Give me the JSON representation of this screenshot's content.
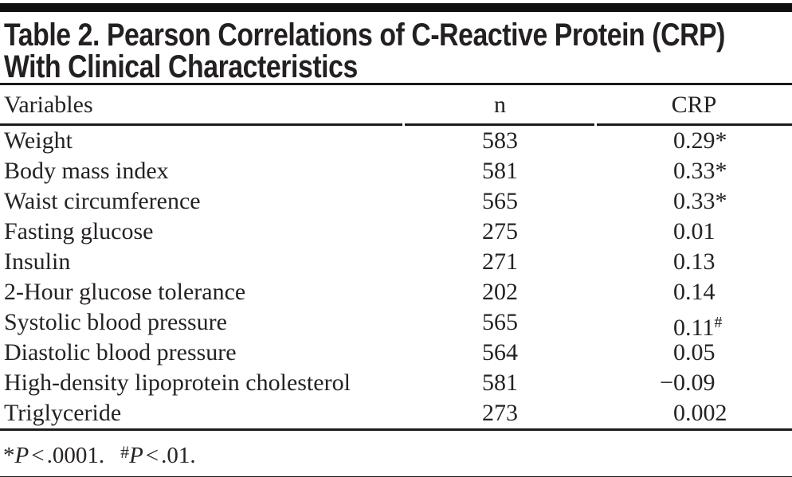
{
  "title": {
    "line1": "Table 2. Pearson Correlations of C-Reactive Protein (CRP)",
    "line2": "With Clinical Characteristics"
  },
  "table": {
    "columns": [
      "Variables",
      "n",
      "CRP"
    ],
    "rows": [
      {
        "variable": "Weight",
        "n": "583",
        "crp_sign": "",
        "crp_value": "0.29",
        "crp_marker": "*"
      },
      {
        "variable": "Body mass index",
        "n": "581",
        "crp_sign": "",
        "crp_value": "0.33",
        "crp_marker": "*"
      },
      {
        "variable": "Waist circumference",
        "n": "565",
        "crp_sign": "",
        "crp_value": "0.33",
        "crp_marker": "*"
      },
      {
        "variable": "Fasting glucose",
        "n": "275",
        "crp_sign": "",
        "crp_value": "0.01",
        "crp_marker": ""
      },
      {
        "variable": "Insulin",
        "n": "271",
        "crp_sign": "",
        "crp_value": "0.13",
        "crp_marker": ""
      },
      {
        "variable": "2-Hour glucose tolerance",
        "n": "202",
        "crp_sign": "",
        "crp_value": "0.14",
        "crp_marker": ""
      },
      {
        "variable": "Systolic blood pressure",
        "n": "565",
        "crp_sign": "",
        "crp_value": "0.11",
        "crp_marker": "#"
      },
      {
        "variable": "Diastolic blood pressure",
        "n": "564",
        "crp_sign": "",
        "crp_value": "0.05",
        "crp_marker": ""
      },
      {
        "variable": "High-density lipoprotein cholesterol",
        "n": "581",
        "crp_sign": "−",
        "crp_value": "0.09",
        "crp_marker": ""
      },
      {
        "variable": "Triglyceride",
        "n": "273",
        "crp_sign": "",
        "crp_value": "0.002",
        "crp_marker": ""
      }
    ]
  },
  "footnote": {
    "marker1": "*",
    "p1": "P",
    "cmp1": "<",
    "val1": ".0001.",
    "marker2": "#",
    "p2": "P",
    "cmp2": "<",
    "val2": ".01."
  },
  "colors": {
    "background": "#ffffff",
    "text": "#262223",
    "rule": "#1b1b1b",
    "top_bar": "#0f0f0f"
  }
}
